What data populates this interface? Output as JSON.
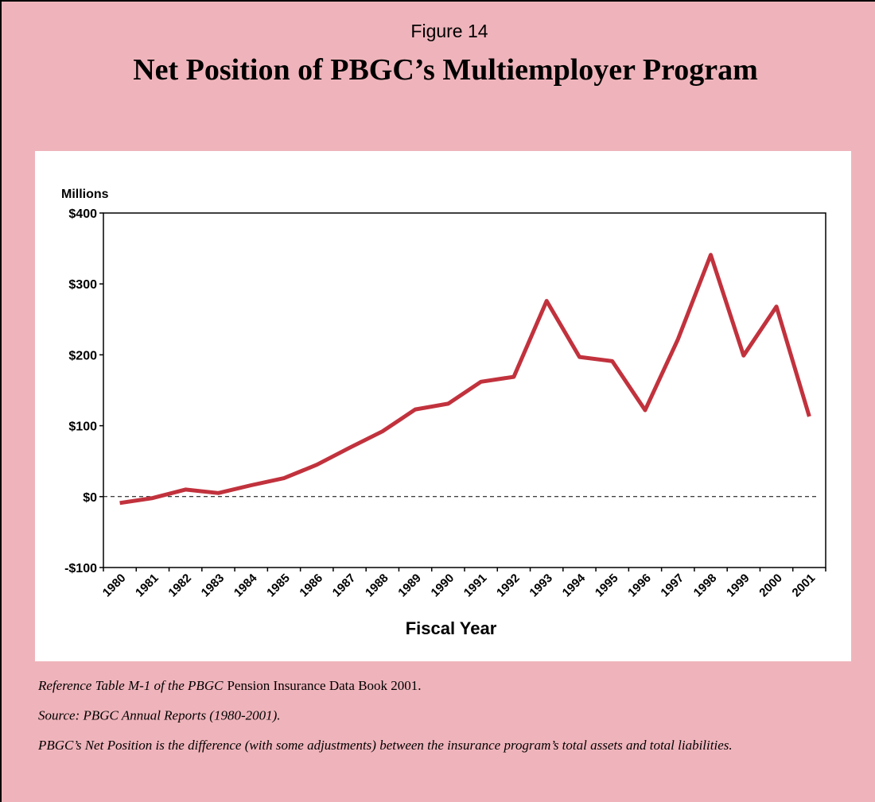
{
  "chart_data": {
    "type": "line",
    "figure_label": "Figure 14",
    "title": "Net Position of PBGC’s Multiemployer Program",
    "y_axis_label": "Millions",
    "x_axis_label": "Fiscal Year",
    "categories": [
      "1980",
      "1981",
      "1982",
      "1983",
      "1984",
      "1985",
      "1986",
      "1987",
      "1988",
      "1989",
      "1990",
      "1991",
      "1992",
      "1993",
      "1994",
      "1995",
      "1996",
      "1997",
      "1998",
      "1999",
      "2000",
      "2001"
    ],
    "series": [
      {
        "name": "Net Position",
        "color": "#c1323d",
        "values": [
          -9,
          -2,
          10,
          5,
          16,
          26,
          45,
          69,
          92,
          123,
          131,
          162,
          169,
          276,
          197,
          191,
          122,
          222,
          341,
          199,
          268,
          113
        ]
      }
    ],
    "ylim": [
      -100,
      400
    ],
    "yticks": [
      {
        "value": -100,
        "label": "-$100"
      },
      {
        "value": 0,
        "label": "$0"
      },
      {
        "value": 100,
        "label": "$100"
      },
      {
        "value": 200,
        "label": "$200"
      },
      {
        "value": 300,
        "label": "$300"
      },
      {
        "value": 400,
        "label": "$400"
      }
    ],
    "zero_line": true,
    "notes": [
      [
        "Reference Table M-1 of the PBGC",
        "Pension Insurance Data Book 2001."
      ],
      [
        "Source: PBGC Annual Reports (1980-2001)."
      ],
      [
        "PBGC’s Net Position is the difference (with some adjustments) between the insurance program’s total assets and total liabilities."
      ]
    ]
  }
}
